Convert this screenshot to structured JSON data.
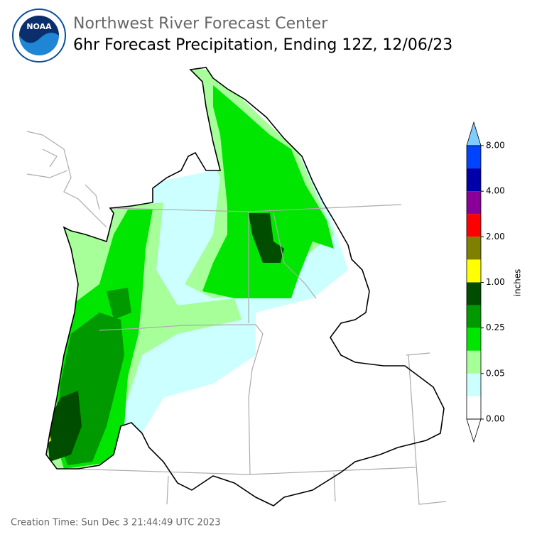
{
  "header": {
    "logo": "NOAA",
    "title": "Northwest River Forecast Center",
    "subtitle": "6hr Forecast Precipitation, Ending 12Z, 12/06/23"
  },
  "colorbar": {
    "label": "inches",
    "colors": [
      "#ffffff",
      "#ccffff",
      "#a6ff99",
      "#00e600",
      "#009900",
      "#004d00",
      "#ffff00",
      "#808000",
      "#ff0000",
      "#880099",
      "#0000aa",
      "#0044ff"
    ],
    "over_color": "#80ccff",
    "ticks": [
      {
        "value": 0,
        "label": "0.00"
      },
      {
        "value": 0.05,
        "label": "0.05"
      },
      {
        "value": 0.25,
        "label": "0.25"
      },
      {
        "value": 1,
        "label": "1.00"
      },
      {
        "value": 2,
        "label": "2.00"
      },
      {
        "value": 4,
        "label": "4.00"
      },
      {
        "value": 8,
        "label": "8.00"
      }
    ]
  },
  "footer": "Creation Time: Sun Dec 3 21:44:49 UTC 2023"
}
